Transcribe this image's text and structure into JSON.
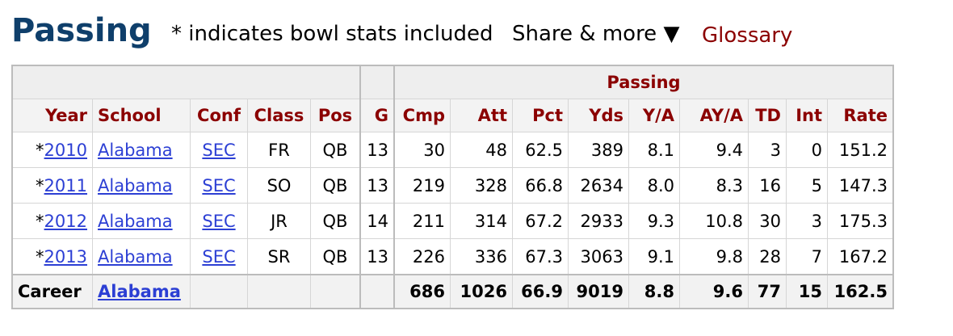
{
  "header": {
    "title": "Passing",
    "note": "* indicates bowl stats included",
    "share_label": "Share & more ▼",
    "glossary_label": "Glossary"
  },
  "table": {
    "group_header": "Passing",
    "columns": [
      "Year",
      "School",
      "Conf",
      "Class",
      "Pos",
      "G",
      "Cmp",
      "Att",
      "Pct",
      "Yds",
      "Y/A",
      "AY/A",
      "TD",
      "Int",
      "Rate"
    ],
    "rows": [
      {
        "star": "*",
        "year": "2010",
        "school": "Alabama",
        "conf": "SEC",
        "class": "FR",
        "pos": "QB",
        "g": "13",
        "cmp": "30",
        "att": "48",
        "pct": "62.5",
        "yds": "389",
        "ya": "8.1",
        "aya": "9.4",
        "td": "3",
        "int": "0",
        "rate": "151.2"
      },
      {
        "star": "*",
        "year": "2011",
        "school": "Alabama",
        "conf": "SEC",
        "class": "SO",
        "pos": "QB",
        "g": "13",
        "cmp": "219",
        "att": "328",
        "pct": "66.8",
        "yds": "2634",
        "ya": "8.0",
        "aya": "8.3",
        "td": "16",
        "int": "5",
        "rate": "147.3"
      },
      {
        "star": "*",
        "year": "2012",
        "school": "Alabama",
        "conf": "SEC",
        "class": "JR",
        "pos": "QB",
        "g": "14",
        "cmp": "211",
        "att": "314",
        "pct": "67.2",
        "yds": "2933",
        "ya": "9.3",
        "aya": "10.8",
        "td": "30",
        "int": "3",
        "rate": "175.3"
      },
      {
        "star": "*",
        "year": "2013",
        "school": "Alabama",
        "conf": "SEC",
        "class": "SR",
        "pos": "QB",
        "g": "13",
        "cmp": "226",
        "att": "336",
        "pct": "67.3",
        "yds": "3063",
        "ya": "9.1",
        "aya": "9.8",
        "td": "28",
        "int": "7",
        "rate": "167.2"
      }
    ],
    "career": {
      "label": "Career",
      "school": "Alabama",
      "cmp": "686",
      "att": "1026",
      "pct": "66.9",
      "yds": "9019",
      "ya": "8.8",
      "aya": "9.6",
      "td": "77",
      "int": "15",
      "rate": "162.5"
    }
  },
  "colors": {
    "title": "#0f3f6b",
    "header_text": "#8b0000",
    "link": "#2c3fd4"
  }
}
